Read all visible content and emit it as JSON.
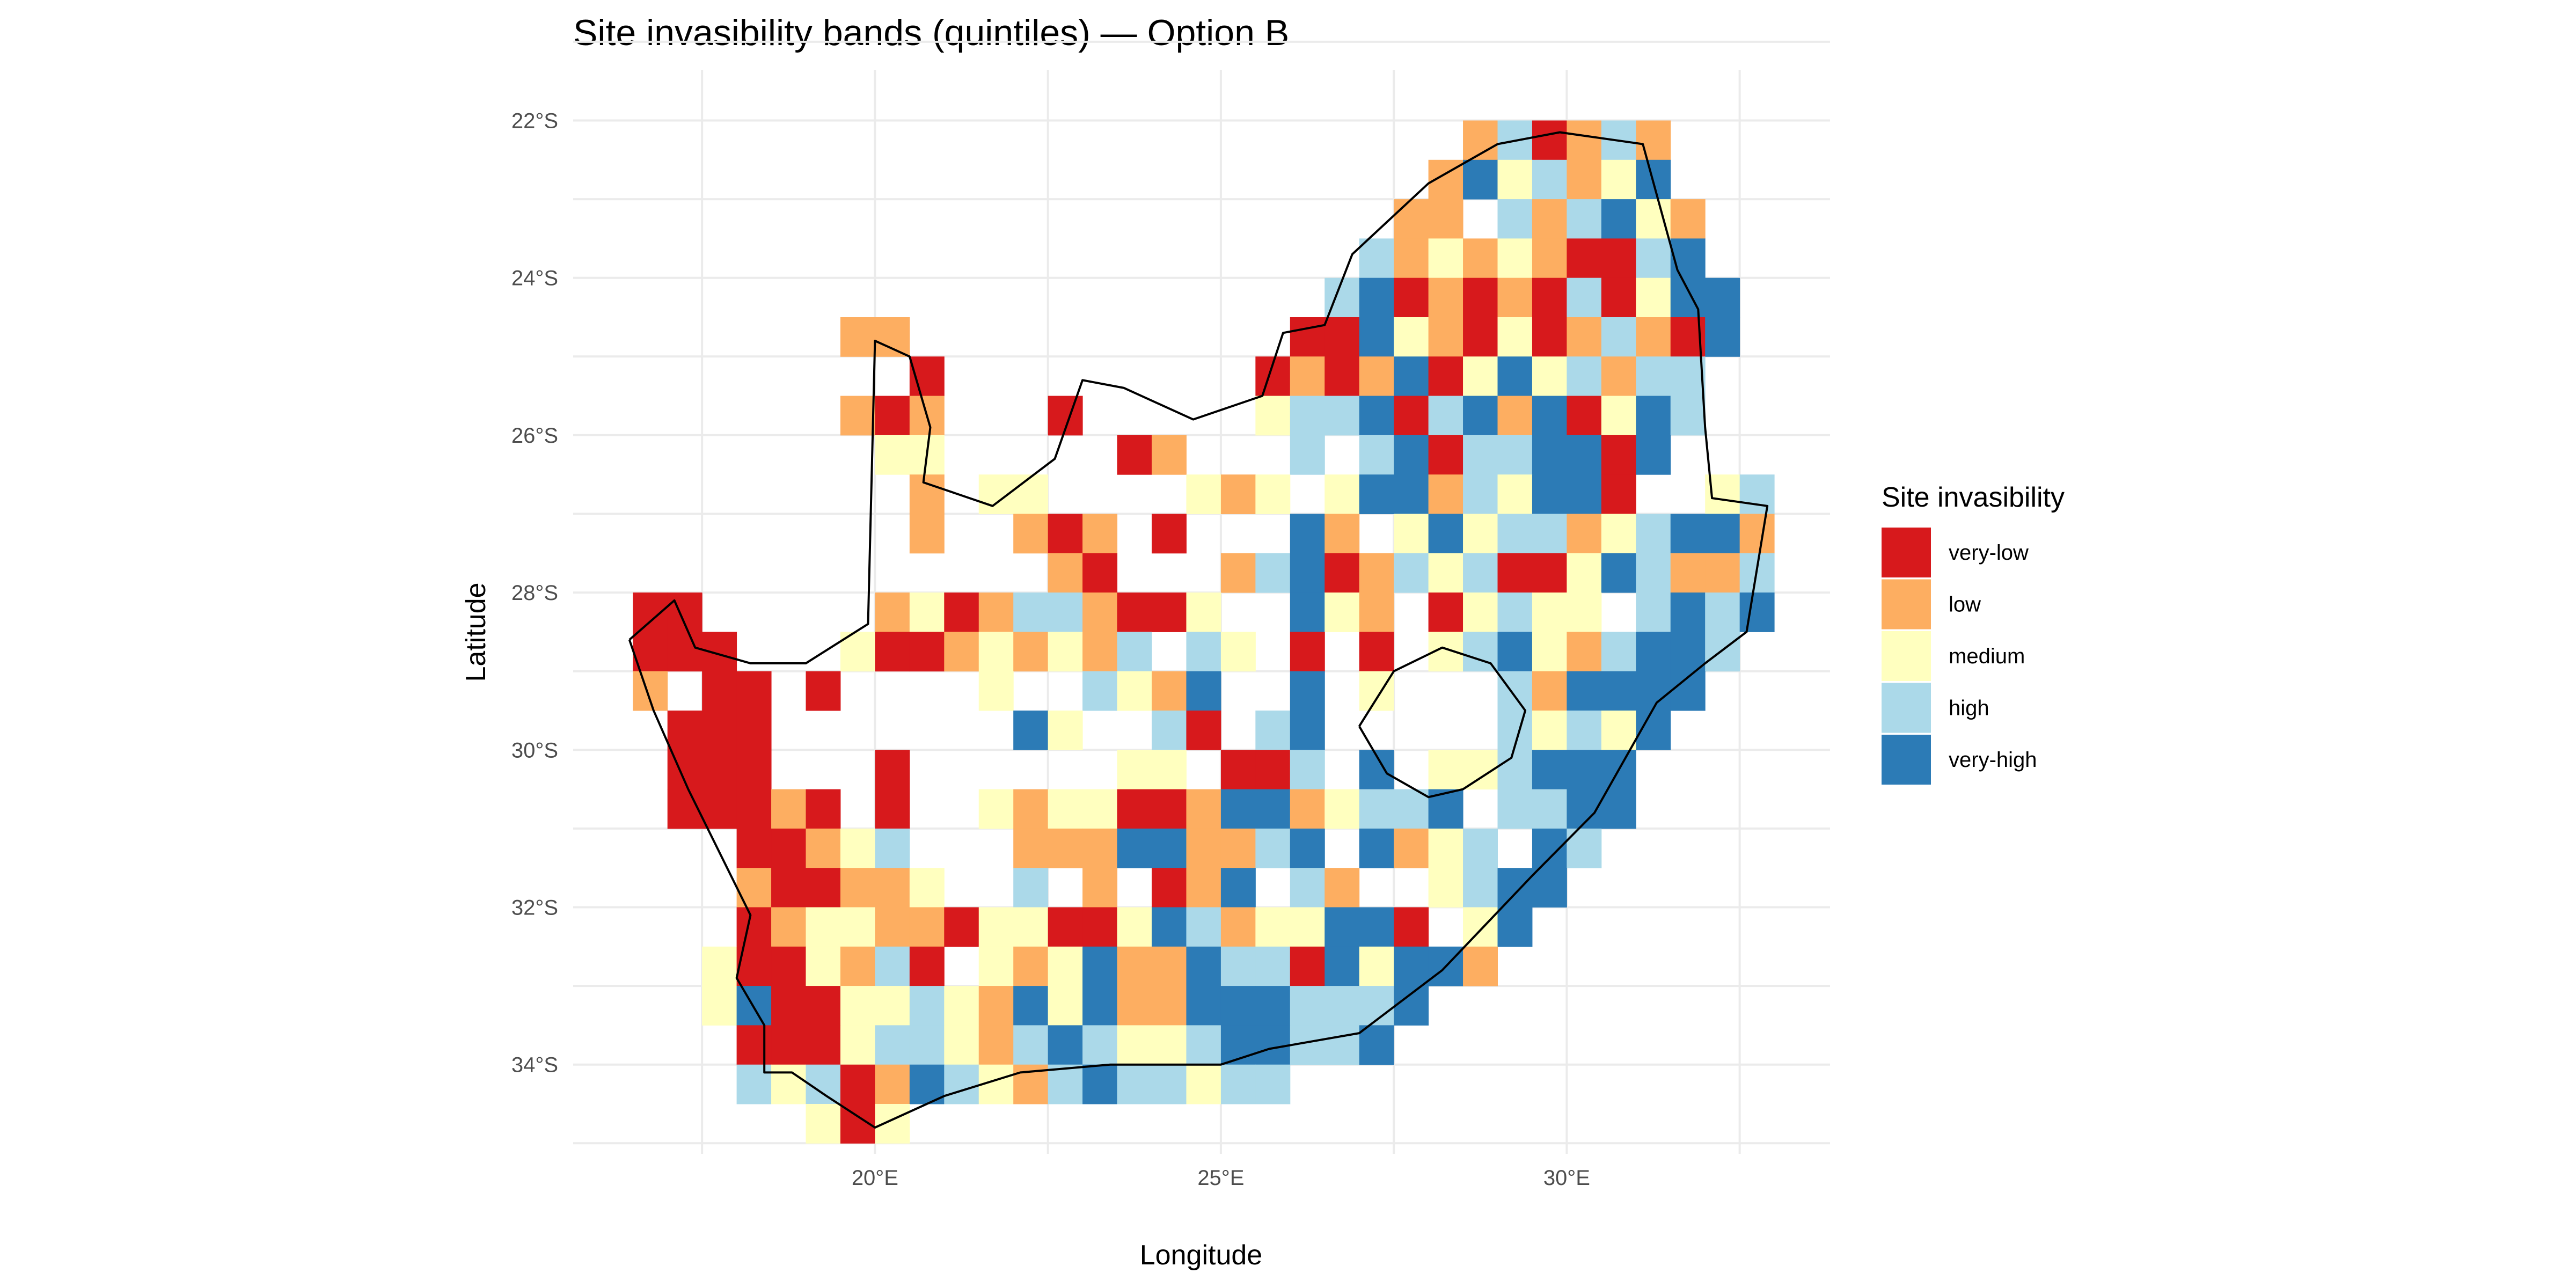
{
  "chart_data": {
    "type": "heatmap",
    "title": "Site invasibility bands (quintiles) — Option B",
    "xlabel": "Longitude",
    "ylabel": "Latitude",
    "x_ticks": [
      {
        "value": 20,
        "label": "20°E"
      },
      {
        "value": 25,
        "label": "25°E"
      },
      {
        "value": 30,
        "label": "30°E"
      }
    ],
    "y_ticks": [
      {
        "value": -22,
        "label": "22°S"
      },
      {
        "value": -24,
        "label": "24°S"
      },
      {
        "value": -26,
        "label": "26°S"
      },
      {
        "value": -28,
        "label": "28°S"
      },
      {
        "value": -30,
        "label": "30°S"
      },
      {
        "value": -32,
        "label": "32°S"
      },
      {
        "value": -34,
        "label": "34°S"
      }
    ],
    "xlim": [
      15.6,
      33.8
    ],
    "ylim": [
      -35.2,
      -21.3
    ],
    "grid": true,
    "legend": {
      "title": "Site invasibility",
      "placement": "right",
      "entries": [
        {
          "code": "R",
          "label": "very-low",
          "color": "#d7191c"
        },
        {
          "code": "O",
          "label": "low",
          "color": "#fdae61"
        },
        {
          "code": "Y",
          "label": "medium",
          "color": "#ffffbf"
        },
        {
          "code": "L",
          "label": "high",
          "color": "#abd9e9"
        },
        {
          "code": "B",
          "label": "very-high",
          "color": "#2c7bb6"
        }
      ]
    },
    "cells": {
      "lon_west_edge": 16.5,
      "lat_north_edge": -22.0,
      "cell_size_deg": 0.5,
      "empty_code": ".",
      "rows_north_to_south": [
        "........................OLROLO...",
        ".......................OBYLOYB...",
        "......................OO.LOLBYO..",
        ".....................LOYOYORRLB..",
        "....................LBRORORLRYBB.",
        "......OO...........RRBYORYROLORB.",
        "........R.........ROROBRYBYLOLL..",
        "......ORO...R.....YLLBRLBOBRYBL..",
        ".......YY.....RO...L.LBRLLBBRB...",
        "........O.YY....YOY.YBBOLYBBR..YL",
        "........O..ORO.R...BO.YBYLLOYLBBO",
        "............OR...OLBROLYLRRYBLOOL",
        "RR.....OYROLLORRY..BYO.RYLYY.LBLB",
        "RRR...YRROYOYOL.LY.R.R.YLBYOLBBL.",
        "O.RR.R....Y..LYOB..B.Y...LOBBBB..",
        ".RRR.......BY..LR.LB.....LYLYB...",
        ".RRR...R......YY.RRL.B.YYLBBB....",
        ".RRROR.R..YOYYRROBBOYLLB.LLBB....",
        "...RROYL...OOOBBOOLB.BOYL.BL.....",
        "...ORROOY..L.O.ROB.LO..YLBB......",
        "...ROYYOORYYRRYBLOYYBBR.YB.......",
        "..YRRYOLR.YOYBOOBLLRBYBBO........",
        "..YBRRYYLYOBYBOOBBBLLLB..........",
        "...RRRYLLYOLBLYYLBBLLB...........",
        "...LYLROBLYOLBLLYLL..............",
        ".....YRY........................."
      ]
    }
  }
}
